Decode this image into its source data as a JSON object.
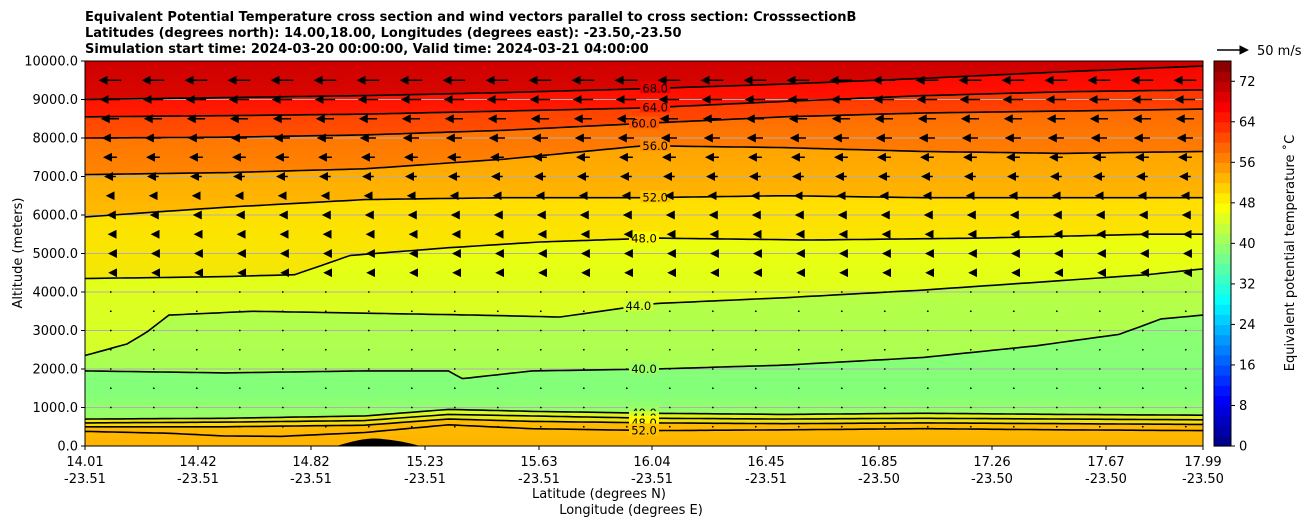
{
  "chart_data": {
    "type": "contourf",
    "title_lines": [
      "Equivalent Potential Temperature cross section and wind vectors parallel to cross section: CrosssectionB",
      "Latitudes (degrees north): 14.00,18.00, Longitudes (degrees east): -23.50,-23.50",
      "Simulation start time: 2024-03-20 00:00:00, Valid time: 2024-03-21 04:00:00"
    ],
    "xlabel": "Latitude (degrees N)",
    "xlabel2": "Longitude (degrees E)",
    "ylabel": "Altitude (meters)",
    "ylim": [
      0,
      10000
    ],
    "y_ticks": [
      "0.0",
      "1000.0",
      "2000.0",
      "3000.0",
      "4000.0",
      "5000.0",
      "6000.0",
      "7000.0",
      "8000.0",
      "9000.0",
      "10000.0"
    ],
    "y_tick_values": [
      0,
      1000,
      2000,
      3000,
      4000,
      5000,
      6000,
      7000,
      8000,
      9000,
      10000
    ],
    "x_ticks": [
      {
        "lat": "14.01",
        "lon": "-23.51"
      },
      {
        "lat": "14.42",
        "lon": "-23.51"
      },
      {
        "lat": "14.82",
        "lon": "-23.51"
      },
      {
        "lat": "15.23",
        "lon": "-23.51"
      },
      {
        "lat": "15.63",
        "lon": "-23.51"
      },
      {
        "lat": "16.04",
        "lon": "-23.51"
      },
      {
        "lat": "16.45",
        "lon": "-23.51"
      },
      {
        "lat": "16.85",
        "lon": "-23.50"
      },
      {
        "lat": "17.26",
        "lon": "-23.50"
      },
      {
        "lat": "17.67",
        "lon": "-23.50"
      },
      {
        "lat": "17.99",
        "lon": "-23.50"
      }
    ],
    "colorbar": {
      "label": "Equivalent potential temperature ˚C",
      "range": [
        0,
        76
      ],
      "tick_values": [
        0,
        8,
        16,
        24,
        32,
        40,
        48,
        56,
        64,
        72
      ],
      "tick_labels": [
        "0",
        "8",
        "16",
        "24",
        "32",
        "40",
        "48",
        "56",
        "64",
        "72"
      ],
      "colormap": "jet"
    },
    "quiver_key": {
      "label": "50 m/s"
    },
    "contours": [
      {
        "label": "68.0",
        "value": 68,
        "x": [
          14.0,
          14.5,
          15.0,
          15.5,
          16.0,
          16.5,
          17.0,
          17.5,
          18.0
        ],
        "y": [
          9000,
          9050,
          9100,
          9180,
          9280,
          9400,
          9550,
          9720,
          9870
        ]
      },
      {
        "label": "64.0",
        "value": 64,
        "x": [
          14.0,
          14.5,
          15.0,
          15.5,
          16.0,
          16.5,
          17.0,
          17.5,
          18.0
        ],
        "y": [
          8550,
          8580,
          8620,
          8700,
          8780,
          8950,
          9100,
          9200,
          9250
        ]
      },
      {
        "label": "60.0",
        "value": 60,
        "x": [
          14.0,
          14.5,
          15.0,
          15.5,
          16.0,
          16.5,
          17.0,
          17.5,
          18.0
        ],
        "y": [
          8000,
          8020,
          8080,
          8200,
          8380,
          8550,
          8650,
          8700,
          8750
        ]
      },
      {
        "label": "56.0",
        "value": 56,
        "x": [
          14.0,
          14.5,
          15.0,
          15.5,
          16.0,
          16.5,
          17.0,
          17.5,
          18.0
        ],
        "y": [
          7050,
          7100,
          7200,
          7450,
          7800,
          7750,
          7650,
          7600,
          7650
        ]
      },
      {
        "label": "52.0",
        "value": 52,
        "x": [
          14.0,
          14.2,
          14.5,
          15.0,
          15.5,
          16.0,
          16.5,
          17.0,
          17.5,
          18.0
        ],
        "y": [
          5950,
          6050,
          6200,
          6400,
          6450,
          6450,
          6500,
          6450,
          6450,
          6450
        ]
      },
      {
        "label": "48.0",
        "value": 48,
        "x": [
          14.0,
          14.5,
          14.75,
          14.95,
          15.3,
          15.63,
          16.04,
          16.6,
          17.2,
          17.8,
          18.0
        ],
        "y": [
          4350,
          4400,
          4450,
          4950,
          5150,
          5300,
          5400,
          5350,
          5400,
          5500,
          5500
        ]
      },
      {
        "label": "44.0",
        "value": 44,
        "x": [
          14.0,
          14.15,
          14.22,
          14.3,
          14.6,
          15.0,
          15.4,
          15.7,
          16.04,
          16.5,
          17.0,
          17.4,
          17.8,
          18.0
        ],
        "y": [
          2350,
          2650,
          2950,
          3400,
          3500,
          3450,
          3400,
          3350,
          3700,
          3850,
          4050,
          4250,
          4450,
          4600
        ]
      },
      {
        "label": "40.0",
        "value": 40,
        "x": [
          14.0,
          14.5,
          15.0,
          15.3,
          15.35,
          15.6,
          16.04,
          16.5,
          17.0,
          17.4,
          17.7,
          17.85,
          18.0
        ],
        "y": [
          1950,
          1900,
          1950,
          1950,
          1750,
          1950,
          2000,
          2100,
          2300,
          2600,
          2900,
          3300,
          3400
        ]
      },
      {
        "label": "40.0",
        "value": 40,
        "x": [
          14.0,
          14.5,
          15.0,
          15.3,
          15.6,
          16.04,
          16.5,
          17.0,
          17.5,
          18.0
        ],
        "y": [
          700,
          720,
          780,
          950,
          900,
          850,
          820,
          850,
          820,
          800
        ]
      },
      {
        "label": "44.0",
        "value": 44,
        "x": [
          14.0,
          14.5,
          15.0,
          15.3,
          15.6,
          16.04,
          16.5,
          17.0,
          17.5,
          18.0
        ],
        "y": [
          600,
          620,
          660,
          820,
          780,
          720,
          700,
          720,
          700,
          680
        ]
      },
      {
        "label": "48.0",
        "value": 48,
        "x": [
          14.0,
          14.5,
          15.0,
          15.3,
          15.6,
          16.04,
          16.5,
          17.0,
          17.5,
          18.0
        ],
        "y": [
          500,
          500,
          540,
          700,
          640,
          600,
          580,
          600,
          580,
          560
        ]
      },
      {
        "label": "52.0",
        "value": 52,
        "x": [
          14.0,
          14.3,
          14.5,
          14.7,
          15.0,
          15.3,
          15.6,
          16.04,
          16.5,
          17.0,
          17.5,
          18.0
        ],
        "y": [
          380,
          330,
          260,
          250,
          350,
          550,
          450,
          400,
          420,
          450,
          420,
          400
        ]
      }
    ],
    "wind": {
      "rows_m": [
        9500,
        9000,
        8500,
        8000,
        7500,
        7000,
        6500,
        6000,
        5500,
        5000,
        4500,
        4000,
        3500,
        3000,
        2500,
        2000,
        1500,
        1000,
        500
      ],
      "max_length_m_s": [
        -38,
        -34,
        -30,
        -26,
        -22,
        -18,
        -12,
        -8,
        -5,
        -4,
        -3,
        -2,
        -1,
        -1,
        0,
        0,
        0,
        0,
        0
      ]
    }
  }
}
